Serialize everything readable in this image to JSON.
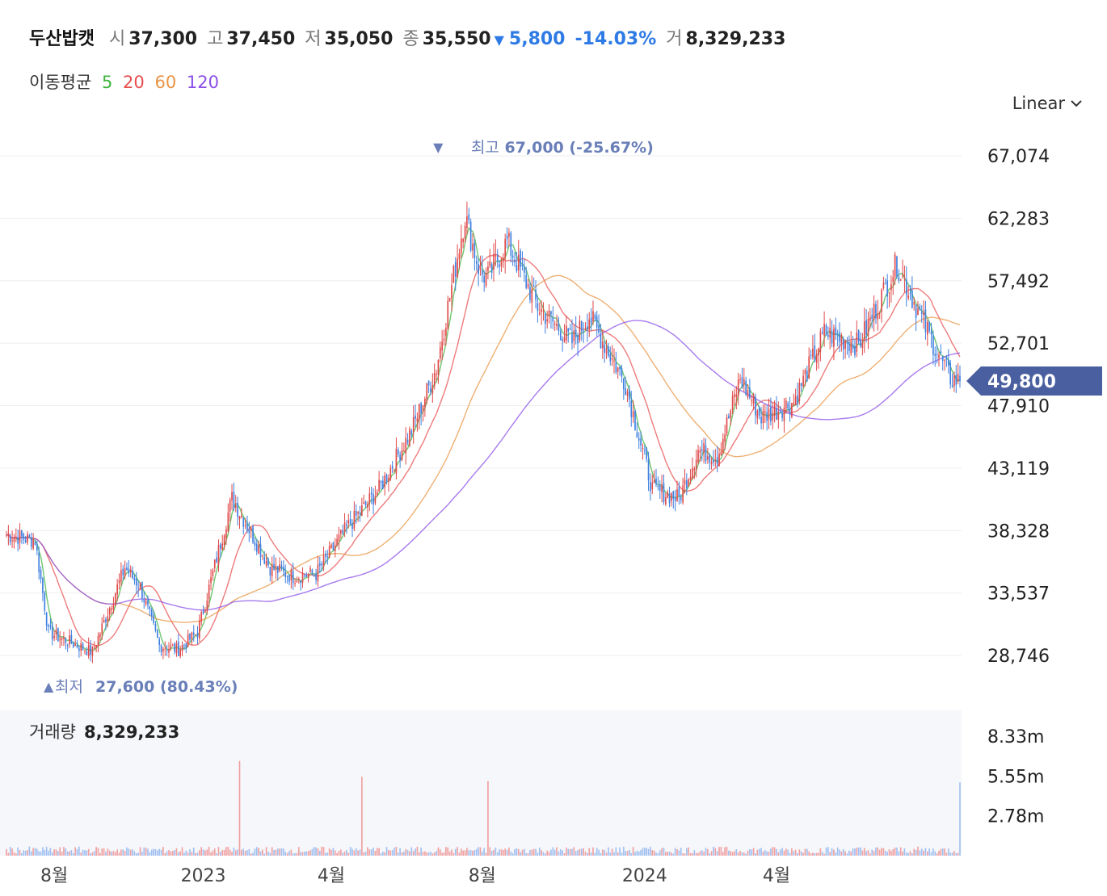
{
  "header": {
    "stock_name": "두산밥캣",
    "open_label": "시",
    "open": "37,300",
    "high_label": "고",
    "high": "37,450",
    "low_label": "저",
    "low": "35,050",
    "close_label": "종",
    "close": "35,550",
    "change_arrow": "▼",
    "change": "5,800",
    "change_pct": "-14.03%",
    "volume_label": "거",
    "volume": "8,329,233"
  },
  "moving_average": {
    "label": "이동평균",
    "periods": [
      {
        "value": "5",
        "color": "#3fb33f"
      },
      {
        "value": "20",
        "color": "#e84f4f"
      },
      {
        "value": "60",
        "color": "#e89546"
      },
      {
        "value": "120",
        "color": "#8b4fe8"
      }
    ]
  },
  "scale_selector": {
    "label": "Linear",
    "icon": "chevron-down-icon"
  },
  "colors": {
    "up": "#e04848",
    "down": "#3d7fe0",
    "price_tag": "#4a5fa0",
    "annotation": "#6a7fb8"
  },
  "chart_data": {
    "type": "candlestick",
    "price_axis": {
      "ticks": [
        67074,
        62283,
        57492,
        52701,
        47910,
        43119,
        38328,
        33537,
        28746
      ],
      "tick_labels": [
        "67,074",
        "62,283",
        "57,492",
        "52,701",
        "47,910",
        "43,119",
        "38,328",
        "33,537",
        "28,746"
      ],
      "range": [
        26000,
        69000
      ]
    },
    "current_price": {
      "value": 49800,
      "label": "49,800"
    },
    "max_marker": {
      "arrow": "▼",
      "label": "최고",
      "value": "67,000 (-25.67%)",
      "price": 67000
    },
    "min_marker": {
      "arrow": "▲",
      "label": "최저",
      "value": "27,600 (80.43%)",
      "price": 27600
    },
    "time_axis": {
      "labels": [
        "8월",
        "2023",
        "4월",
        "8월",
        "2024",
        "4월"
      ],
      "label_index": [
        25,
        103,
        170,
        249,
        334,
        403
      ]
    },
    "price_path": {
      "note_days": 500,
      "anchor_index": [
        0,
        15,
        22,
        45,
        62,
        70,
        80,
        90,
        100,
        118,
        138,
        150,
        162,
        178,
        195,
        212,
        225,
        240,
        248,
        252,
        262,
        278,
        296,
        305,
        324,
        338,
        352,
        362,
        372,
        384,
        395,
        412,
        428,
        446,
        466,
        482,
        494,
        499
      ],
      "anchor_close": [
        38000,
        37600,
        30500,
        29000,
        35500,
        34000,
        29500,
        29200,
        30500,
        40800,
        35500,
        34800,
        35000,
        38500,
        41500,
        46000,
        50800,
        62500,
        58000,
        57800,
        60500,
        55500,
        52800,
        54800,
        49600,
        41500,
        40800,
        44500,
        44000,
        50000,
        47000,
        48200,
        53500,
        52600,
        58800,
        53600,
        50000,
        49800
      ]
    },
    "volume_panel": {
      "label": "거래량",
      "value": "8,329,233",
      "tick_labels": [
        "8.33m",
        "5.55m",
        "2.78m"
      ],
      "ticks": [
        8.33,
        5.55,
        2.78
      ],
      "unit": "m",
      "base_volume_m": 0.35,
      "spikes": [
        {
          "index": 122,
          "value_m": 6.6
        },
        {
          "index": 186,
          "value_m": 5.5
        },
        {
          "index": 252,
          "value_m": 5.2
        },
        {
          "index": 499,
          "value_m": 5.1
        }
      ]
    }
  }
}
